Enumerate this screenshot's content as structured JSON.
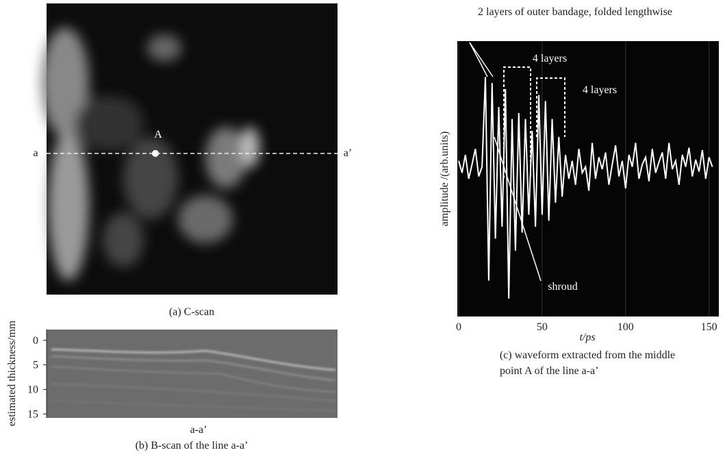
{
  "c_scan": {
    "caption": "(a) C-scan",
    "left_label": "a",
    "right_label": "a’",
    "point_label": "A"
  },
  "b_scan": {
    "caption": "(b) B-scan of the line a-a’",
    "x_label": "a-a’",
    "y_label": "estimated thickness/mm",
    "ylim": [
      -2.2,
      15.8
    ],
    "yticks": [
      0,
      5,
      10,
      15
    ]
  },
  "chart_data": {
    "type": "line",
    "title": "2 layers of outer bandage, folded lengthwise",
    "x_label": "t/ps",
    "y_label": "amplitude /(arb.units)",
    "caption": [
      "(c) waveform extracted from the middle",
      "point A of the line a-a’"
    ],
    "annotations": [
      "4 layers",
      "4 layers",
      "shroud"
    ],
    "x": [
      0,
      2,
      4,
      6,
      8,
      10,
      12,
      14,
      16,
      18,
      20,
      22,
      24,
      26,
      28,
      30,
      32,
      34,
      36,
      38,
      40,
      42,
      44,
      46,
      48,
      50,
      52,
      54,
      56,
      58,
      60,
      62,
      64,
      66,
      68,
      70,
      72,
      74,
      76,
      78,
      80,
      82,
      84,
      86,
      88,
      90,
      92,
      94,
      96,
      98,
      100,
      102,
      104,
      106,
      108,
      110,
      112,
      114,
      116,
      118,
      120,
      122,
      124,
      126,
      128,
      130,
      132,
      134,
      136,
      138,
      140,
      142,
      144,
      146,
      148,
      150,
      152
    ],
    "series": [
      {
        "name": "waveform",
        "color": "#ffffff",
        "values": [
          0.15,
          0.05,
          0.2,
          0.0,
          0.12,
          0.25,
          0.02,
          0.1,
          0.85,
          -0.85,
          0.8,
          -0.5,
          0.6,
          -0.4,
          0.75,
          -1.0,
          0.5,
          -0.6,
          0.55,
          -0.45,
          0.5,
          -0.3,
          0.4,
          -0.4,
          0.7,
          -0.3,
          0.65,
          -0.35,
          0.5,
          -0.2,
          0.35,
          -0.15,
          0.2,
          0.0,
          0.15,
          -0.05,
          0.25,
          0.05,
          0.1,
          -0.1,
          0.3,
          0.0,
          0.18,
          0.08,
          0.22,
          -0.05,
          0.12,
          0.28,
          0.02,
          0.15,
          -0.08,
          0.2,
          0.1,
          0.3,
          0.0,
          0.12,
          0.18,
          -0.02,
          0.25,
          0.05,
          0.14,
          0.22,
          0.0,
          0.3,
          0.08,
          0.15,
          -0.05,
          0.2,
          0.1,
          0.26,
          0.02,
          0.16,
          0.06,
          0.24,
          0.0,
          0.18,
          0.1
        ]
      }
    ],
    "xlim": [
      0,
      153
    ],
    "xticks": [
      0,
      50,
      100,
      150
    ],
    "ylim": [
      -1.15,
      1.15
    ],
    "grid": true
  }
}
